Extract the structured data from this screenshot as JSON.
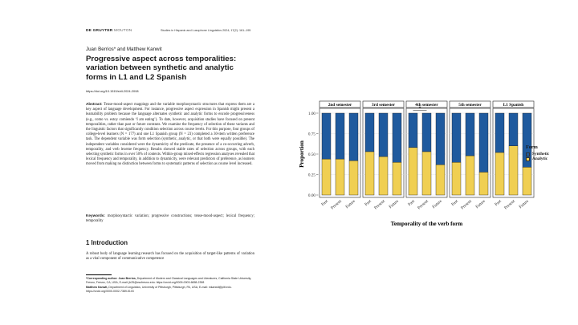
{
  "header": {
    "publisher_bold": "DE GRUYTER",
    "publisher_light": "MOUTON",
    "journal": "Studies in Hispanic and Lusophone Linguistics 2024; 17(2): 161–195"
  },
  "article": {
    "authors": "Juan Berrios* and Matthew Kanwit",
    "title": "Progressive aspect across temporalities: variation between synthetic and analytic forms in L1 and L2 Spanish",
    "doi": "https://doi.org/10.1515/shll-2024-2008",
    "abstract_label": "Abstract:",
    "abstract": "Tense-mood-aspect mappings and the variable morphosyntactic structures that express them are a key aspect of language development. For instance, progressive aspect expression in Spanish might present a learnability problem because the language alternates synthetic and analytic forms to encode progressiveness (e.g., como vs. estoy comiendo ‘I am eating’). To date, however, acquisition studies have focused on present temporalities, rather than past or future contrasts. We examine the frequency of selection of these variants and the linguistic factors that significantly condition selection across course levels. For this purpose, four groups of college-level learners (N = 177) and one L1 Spanish group (N = 23) completed a 30-item written preference task. The dependent variable was form selection (synthetic, analytic, or that both were equally possible). The independent variables considered were the dynamicity of the predicate, the presence of a co-occurring adverb, temporality, and verb lexeme frequency. Results showed stable rates of selection across groups, with each selecting synthetic forms in over 50% of contexts. Within-group mixed-effects regression analyses revealed that lexical frequency and temporality, in addition to dynamicity, were relevant predictors of preference, as learners moved from making no distinction between forms to systematic patterns of selection as course level increased.",
    "keywords_label": "Keywords:",
    "keywords": "morphosyntactic variation; progressive constructions; tense-mood-aspect; lexical frequency; temporality",
    "section_heading": "1  Introduction",
    "intro": "A robust body of language learning research has focused on the acquisition of target-like patterns of variation as a vital component of communicative competence",
    "footnote_1_label": "*Corresponding author: Juan Berrios,",
    "footnote_1": "Department of Modern and Classical Languages and Literatures, California State University, Fresno, Fresno, CA, USA, E-mail: jb25@csufresno.edu. https://orcid.org/0009-0003-6658-2398",
    "footnote_2_label": "Matthew Kanwit,",
    "footnote_2": "Department of Linguistics, University of Pittsburgh, Pittsburgh, PA, USA, E-mail: mkanwit@pitt.edu. https://orcid.org/0000-0002-7389-5103"
  },
  "chart_data": {
    "type": "bar",
    "stacked": true,
    "facets": [
      "2nd semester",
      "3rd semester",
      "4th semester",
      "5th semester",
      "L1 Spanish"
    ],
    "categories": [
      "Past",
      "Present",
      "Future"
    ],
    "series": [
      {
        "name": "Analytic",
        "values": [
          [
            0.44,
            0.44,
            0.42
          ],
          [
            0.53,
            0.47,
            0.4
          ],
          [
            0.58,
            0.53,
            0.37
          ],
          [
            0.4,
            0.48,
            0.28
          ],
          [
            0.52,
            0.6,
            0.34
          ]
        ]
      },
      {
        "name": "Synthetic",
        "values": [
          [
            0.56,
            0.56,
            0.58
          ],
          [
            0.47,
            0.53,
            0.6
          ],
          [
            0.42,
            0.47,
            0.63
          ],
          [
            0.6,
            0.52,
            0.72
          ],
          [
            0.48,
            0.4,
            0.66
          ]
        ]
      }
    ],
    "annotation": {
      "facet": "4th semester",
      "between": [
        "Past",
        "Present"
      ],
      "text": "*"
    },
    "ylim": [
      0,
      1
    ],
    "yticks": [
      "0.00",
      "0.25",
      "0.50",
      "0.75",
      "1.00"
    ],
    "xlabel": "Temporality of the verb form",
    "ylabel": "Proportion",
    "legend_title": "Form",
    "legend_position": "right",
    "colors": {
      "Synthetic": "#1f5a9e",
      "Analytic": "#f0cf52"
    },
    "grid": true
  }
}
